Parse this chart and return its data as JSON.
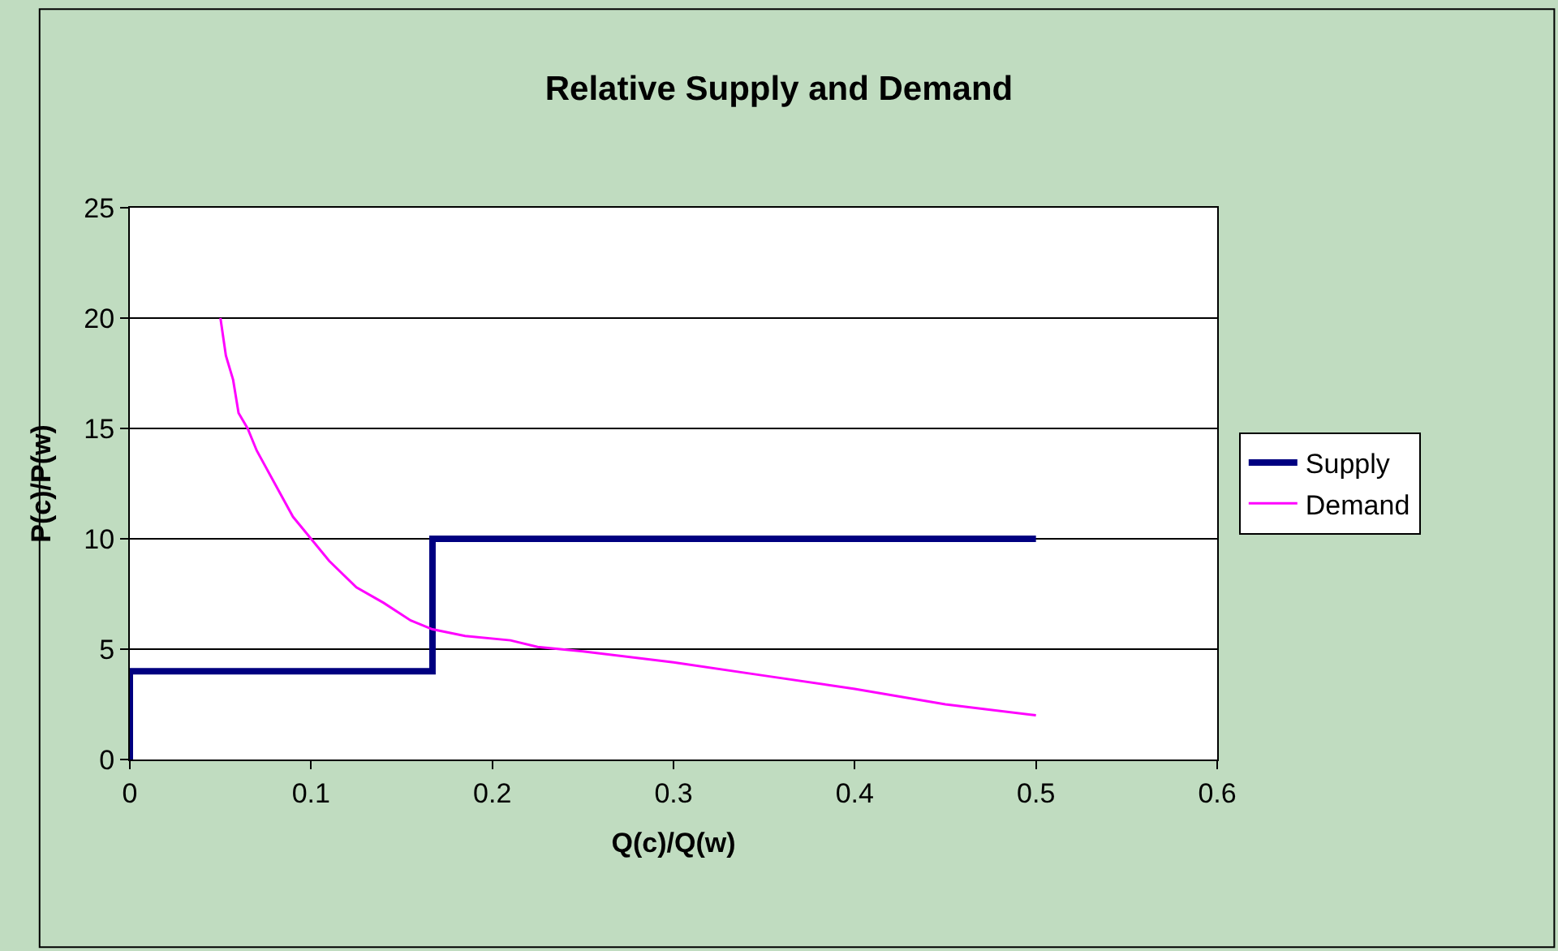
{
  "chart_data": {
    "type": "line",
    "title": "Relative Supply and Demand",
    "xlabel": "Q(c)/Q(w)",
    "ylabel": "P(c)/P(w)",
    "series": [
      {
        "name": "Supply",
        "color": "#000080",
        "x": [
          0,
          0,
          0.167,
          0.167,
          0.5
        ],
        "values": [
          0,
          4,
          4,
          10,
          10
        ]
      },
      {
        "name": "Demand",
        "color": "#ff00ff",
        "x": [
          0.05,
          0.053,
          0.057,
          0.06,
          0.065,
          0.07,
          0.08,
          0.09,
          0.1,
          0.11,
          0.125,
          0.14,
          0.155,
          0.167,
          0.185,
          0.21,
          0.225,
          0.25,
          0.3,
          0.35,
          0.4,
          0.45,
          0.5
        ],
        "values": [
          20,
          18.3,
          17.2,
          15.7,
          15,
          14,
          12.5,
          11,
          10,
          9,
          7.8,
          7.1,
          6.3,
          5.9,
          5.6,
          5.4,
          5.1,
          4.9,
          4.4,
          3.8,
          3.2,
          2.5,
          2
        ]
      }
    ],
    "xlim": [
      0,
      0.6
    ],
    "xticks": [
      0,
      0.1,
      0.2,
      0.3,
      0.4,
      0.5,
      0.6
    ],
    "ylim": [
      0,
      25
    ],
    "yticks": [
      0,
      5,
      10,
      15,
      20,
      25
    ],
    "grid": "y",
    "legend": "right",
    "marker": "none",
    "line_style": "solid"
  }
}
